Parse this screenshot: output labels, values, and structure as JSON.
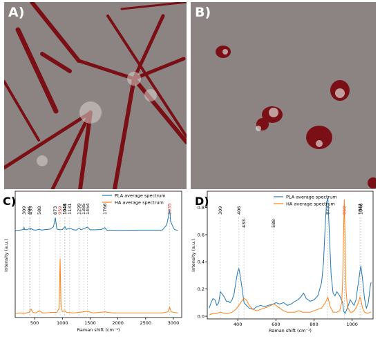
{
  "panels": {
    "a": {
      "letter": "A)"
    },
    "b": {
      "letter": "B)"
    },
    "c": {
      "letter": "C)"
    },
    "d": {
      "letter": "D)"
    }
  },
  "colors": {
    "pla": "#1f77b4",
    "ha": "#ff7f0e",
    "ha_band": "#d62728",
    "map_bg": "#8c8482",
    "map_mark": "#7a1016"
  },
  "chart_data": [
    {
      "id": "C",
      "type": "line",
      "xlabel": "Raman shift (cm⁻¹)",
      "ylabel": "Intensity (a.u.)",
      "xlim": [
        150,
        3150
      ],
      "xticks": [
        500,
        1000,
        1500,
        2000,
        2500,
        3000
      ],
      "legend": {
        "placement": "top-center"
      },
      "series": [
        {
          "name": "PLA average spectrum",
          "color": "#1f77b4",
          "x": [
            150,
            240,
            300,
            309,
            320,
            360,
            406,
            420,
            433,
            470,
            520,
            588,
            620,
            700,
            780,
            840,
            873,
            900,
            959,
            1000,
            1046,
            1070,
            1131,
            1200,
            1250,
            1299,
            1340,
            1385,
            1454,
            1500,
            1600,
            1700,
            1766,
            1800,
            2000,
            2400,
            2800,
            2880,
            2935,
            2950,
            3000,
            3020,
            3080
          ],
          "y": [
            0.3,
            0.31,
            0.33,
            0.4,
            0.33,
            0.32,
            0.36,
            0.33,
            0.37,
            0.32,
            0.31,
            0.34,
            0.31,
            0.33,
            0.34,
            0.42,
            0.72,
            0.34,
            0.32,
            0.33,
            0.42,
            0.33,
            0.38,
            0.32,
            0.31,
            0.37,
            0.32,
            0.36,
            0.41,
            0.32,
            0.32,
            0.33,
            0.39,
            0.31,
            0.3,
            0.31,
            0.31,
            0.48,
            0.97,
            0.6,
            0.39,
            0.33,
            0.3
          ]
        },
        {
          "name": "HA average spectrum",
          "color": "#ff7f0e",
          "x": [
            150,
            250,
            300,
            350,
            400,
            433,
            470,
            520,
            588,
            640,
            700,
            800,
            900,
            940,
            959,
            975,
            1000,
            1041,
            1080,
            1200,
            1300,
            1454,
            1550,
            1766,
            1900,
            2300,
            2800,
            2900,
            2935,
            2960,
            3080
          ],
          "y": [
            0.01,
            0.02,
            0.01,
            0.02,
            0.03,
            0.09,
            0.03,
            0.02,
            0.06,
            0.02,
            0.02,
            0.03,
            0.03,
            0.1,
            0.98,
            0.15,
            0.04,
            0.06,
            0.03,
            0.02,
            0.03,
            0.05,
            0.02,
            0.04,
            0.02,
            0.02,
            0.02,
            0.04,
            0.12,
            0.04,
            0.02
          ]
        }
      ],
      "annotations": [
        {
          "x": 309,
          "label": "309",
          "color": "#000000"
        },
        {
          "x": 406,
          "label": "406",
          "color": "#000000"
        },
        {
          "x": 433,
          "label": "433",
          "color": "#000000"
        },
        {
          "x": 588,
          "label": "588",
          "color": "#000000"
        },
        {
          "x": 873,
          "label": "873",
          "color": "#000000"
        },
        {
          "x": 959,
          "label": "959",
          "color": "#d62728"
        },
        {
          "x": 1041,
          "label": "1041",
          "color": "#000000"
        },
        {
          "x": 1046,
          "label": "1046",
          "color": "#000000"
        },
        {
          "x": 1131,
          "label": "1131",
          "color": "#000000"
        },
        {
          "x": 1299,
          "label": "1299",
          "color": "#000000"
        },
        {
          "x": 1385,
          "label": "1385",
          "color": "#000000"
        },
        {
          "x": 1454,
          "label": "1454",
          "color": "#000000"
        },
        {
          "x": 1766,
          "label": "1766",
          "color": "#000000"
        },
        {
          "x": 2935,
          "label": "2935",
          "color": "#d62728"
        }
      ]
    },
    {
      "id": "D",
      "type": "line",
      "xlabel": "Raman shift (cm⁻¹)",
      "ylabel": "Intensity (a.u.)",
      "xlim": [
        240,
        1110
      ],
      "ylim": [
        -0.02,
        0.92
      ],
      "xticks": [
        400,
        600,
        800,
        1000
      ],
      "yticks": [
        0.0,
        0.2,
        0.4,
        0.6,
        0.8
      ],
      "legend": {
        "placement": "top-center"
      },
      "series": [
        {
          "name": "PLA average spectrum",
          "color": "#1f77b4",
          "x": [
            250,
            260,
            270,
            280,
            290,
            300,
            309,
            320,
            330,
            340,
            350,
            360,
            370,
            380,
            390,
            400,
            406,
            410,
            420,
            433,
            445,
            460,
            480,
            500,
            520,
            540,
            560,
            588,
            600,
            620,
            640,
            660,
            680,
            700,
            715,
            730,
            745,
            760,
            780,
            800,
            820,
            840,
            850,
            860,
            866,
            873,
            880,
            890,
            900,
            910,
            920,
            935,
            950,
            955,
            959,
            963,
            975,
            990,
            1000,
            1010,
            1020,
            1030,
            1041,
            1046,
            1055,
            1065,
            1075,
            1085,
            1095,
            1100
          ],
          "y": [
            0.06,
            0.1,
            0.13,
            0.12,
            0.08,
            0.1,
            0.18,
            0.16,
            0.14,
            0.11,
            0.11,
            0.1,
            0.12,
            0.16,
            0.25,
            0.33,
            0.35,
            0.32,
            0.23,
            0.1,
            0.08,
            0.06,
            0.05,
            0.07,
            0.08,
            0.07,
            0.08,
            0.09,
            0.1,
            0.09,
            0.1,
            0.08,
            0.09,
            0.11,
            0.12,
            0.14,
            0.17,
            0.13,
            0.11,
            0.12,
            0.15,
            0.25,
            0.4,
            0.7,
            0.84,
            0.87,
            0.62,
            0.3,
            0.17,
            0.15,
            0.18,
            0.15,
            0.1,
            0.04,
            0.03,
            0.02,
            0.06,
            0.12,
            0.1,
            0.08,
            0.12,
            0.22,
            0.33,
            0.37,
            0.27,
            0.13,
            0.06,
            0.1,
            0.22,
            0.25
          ]
        },
        {
          "name": "HA average spectrum",
          "color": "#ff7f0e",
          "x": [
            250,
            270,
            290,
            309,
            330,
            350,
            370,
            390,
            406,
            420,
            433,
            445,
            460,
            480,
            500,
            520,
            540,
            560,
            588,
            600,
            620,
            640,
            660,
            680,
            700,
            720,
            740,
            760,
            780,
            800,
            820,
            840,
            860,
            873,
            885,
            900,
            920,
            935,
            945,
            950,
            955,
            959,
            963,
            968,
            975,
            990,
            1000,
            1010,
            1020,
            1030,
            1041,
            1046,
            1055,
            1065,
            1080,
            1095,
            1100
          ],
          "y": [
            0.01,
            0.02,
            0.02,
            0.03,
            0.02,
            0.02,
            0.03,
            0.05,
            0.08,
            0.11,
            0.13,
            0.12,
            0.08,
            0.05,
            0.04,
            0.05,
            0.06,
            0.07,
            0.09,
            0.08,
            0.06,
            0.04,
            0.03,
            0.03,
            0.03,
            0.04,
            0.03,
            0.03,
            0.03,
            0.04,
            0.05,
            0.06,
            0.1,
            0.14,
            0.07,
            0.03,
            0.03,
            0.04,
            0.1,
            0.25,
            0.6,
            0.86,
            0.6,
            0.2,
            0.07,
            0.03,
            0.03,
            0.04,
            0.06,
            0.09,
            0.14,
            0.12,
            0.06,
            0.03,
            0.02,
            0.03,
            0.03
          ]
        }
      ],
      "annotations": [
        {
          "x": 309,
          "label": "309",
          "color": "#000000"
        },
        {
          "x": 406,
          "label": "406",
          "color": "#000000"
        },
        {
          "x": 433,
          "label": "433",
          "color": "#000000"
        },
        {
          "x": 588,
          "label": "588",
          "color": "#000000"
        },
        {
          "x": 873,
          "label": "873",
          "color": "#000000"
        },
        {
          "x": 959,
          "label": "959",
          "color": "#d62728"
        },
        {
          "x": 1041,
          "label": "1041",
          "color": "#000000"
        },
        {
          "x": 1046,
          "label": "1046",
          "color": "#000000"
        }
      ]
    }
  ]
}
